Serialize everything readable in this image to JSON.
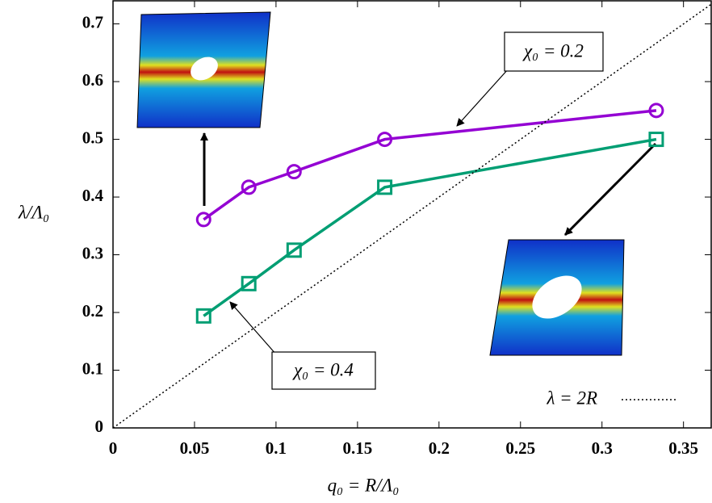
{
  "chart_data": {
    "type": "line",
    "xlabel": "q₀ = R/Λ₀",
    "ylabel": "λ/Λ₀",
    "xlim": [
      0,
      0.367
    ],
    "ylim": [
      0,
      0.74
    ],
    "xticks": [
      0,
      0.05,
      0.1,
      0.15,
      0.2,
      0.25,
      0.3,
      0.35
    ],
    "yticks": [
      0,
      0.1,
      0.2,
      0.3,
      0.4,
      0.5,
      0.6,
      0.7
    ],
    "series": [
      {
        "name": "χ₀ = 0.2",
        "color": "#9400d3",
        "marker": "circle",
        "x": [
          0.0556,
          0.0833,
          0.1111,
          0.1667,
          0.3333
        ],
        "values": [
          0.361,
          0.417,
          0.444,
          0.5,
          0.55
        ]
      },
      {
        "name": "χ₀ = 0.4",
        "color": "#009e73",
        "marker": "square",
        "x": [
          0.0556,
          0.0833,
          0.1111,
          0.1667,
          0.3333
        ],
        "values": [
          0.194,
          0.25,
          0.308,
          0.417,
          0.5
        ]
      },
      {
        "name": "λ = 2R",
        "color": "#000000",
        "style": "dotted",
        "x": [
          0,
          0.367
        ],
        "values": [
          0,
          0.734
        ]
      }
    ],
    "legend": "lower right"
  }
}
